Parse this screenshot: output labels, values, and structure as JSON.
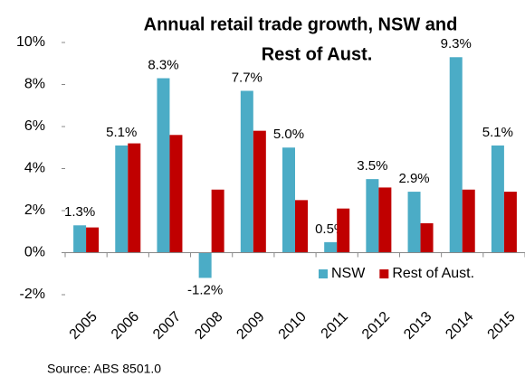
{
  "chart_data": {
    "type": "bar",
    "title": [
      "Annual retail trade growth, NSW and",
      "Rest of Aust."
    ],
    "categories": [
      "2005",
      "2006",
      "2007",
      "2008",
      "2009",
      "2010",
      "2011",
      "2012",
      "2013",
      "2014",
      "2015"
    ],
    "series": [
      {
        "name": "NSW",
        "color": "#4bacc6",
        "values": [
          1.3,
          5.1,
          8.3,
          -1.2,
          7.7,
          5.0,
          0.5,
          3.5,
          2.9,
          9.3,
          5.1
        ],
        "value_labels": [
          "1.3%",
          "5.1%",
          "8.3%",
          "-1.2%",
          "7.7%",
          "5.0%",
          "0.5%",
          "3.5%",
          "2.9%",
          "9.3%",
          "5.1%"
        ]
      },
      {
        "name": "Rest of Aust.",
        "color": "#c00000",
        "values": [
          1.2,
          5.2,
          5.6,
          3.0,
          5.8,
          2.5,
          2.1,
          3.1,
          1.4,
          3.0,
          2.9
        ]
      }
    ],
    "ylim": [
      -2,
      10
    ],
    "yticks": [
      {
        "value": -2,
        "label": "-2%"
      },
      {
        "value": 0,
        "label": "0%"
      },
      {
        "value": 2,
        "label": "2%"
      },
      {
        "value": 4,
        "label": "4%"
      },
      {
        "value": 6,
        "label": "6%"
      },
      {
        "value": 8,
        "label": "8%"
      },
      {
        "value": 10,
        "label": "10%"
      }
    ],
    "legend": "lower right",
    "source": "Source: ABS 8501.0"
  }
}
